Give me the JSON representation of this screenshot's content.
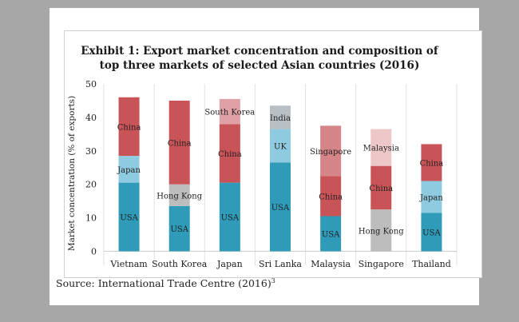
{
  "chart_data": {
    "type": "bar",
    "stacked": true,
    "title": "Exhibit 1: Export market concentration and composition of top three markets of selected Asian countries (2016)",
    "title_lines": [
      "Exhibit 1: Export market concentration and composition of",
      "top three markets of selected Asian countries (2016)"
    ],
    "xlabel": "",
    "ylabel": "Market concentration (% of exports)",
    "ylim": [
      0,
      50
    ],
    "yticks": [
      0,
      10,
      20,
      30,
      40,
      50
    ],
    "grid": false,
    "categories": [
      "Vietnam",
      "South Korea",
      "Japan",
      "Sri Lanka",
      "Malaysia",
      "Singapore",
      "Thailand"
    ],
    "bars": [
      {
        "category": "Vietnam",
        "segments": [
          {
            "label": "USA",
            "value": 20.5,
            "color": "#2f9bb8"
          },
          {
            "label": "Japan",
            "value": 8.0,
            "color": "#8fcbe0"
          },
          {
            "label": "China",
            "value": 17.5,
            "color": "#c95458"
          }
        ]
      },
      {
        "category": "South Korea",
        "segments": [
          {
            "label": "USA",
            "value": 13.5,
            "color": "#2f9bb8"
          },
          {
            "label": "Hong Kong",
            "value": 6.5,
            "color": "#bdbdbd"
          },
          {
            "label": "China",
            "value": 25.0,
            "color": "#c95458"
          }
        ]
      },
      {
        "category": "Japan",
        "segments": [
          {
            "label": "USA",
            "value": 20.5,
            "color": "#2f9bb8"
          },
          {
            "label": "China",
            "value": 17.5,
            "color": "#c95458"
          },
          {
            "label": "South Korea",
            "value": 7.5,
            "color": "#dfa1a5"
          }
        ]
      },
      {
        "category": "Sri Lanka",
        "segments": [
          {
            "label": "USA",
            "value": 26.5,
            "color": "#2f9bb8"
          },
          {
            "label": "UK",
            "value": 10.0,
            "color": "#8fcbe0"
          },
          {
            "label": "India",
            "value": 7.0,
            "color": "#b8c0c6"
          }
        ]
      },
      {
        "category": "Malaysia",
        "segments": [
          {
            "label": "USA",
            "value": 10.5,
            "color": "#2f9bb8"
          },
          {
            "label": "China",
            "value": 12.0,
            "color": "#c95458"
          },
          {
            "label": "Singapore",
            "value": 15.0,
            "color": "#d58488"
          }
        ]
      },
      {
        "category": "Singapore",
        "segments": [
          {
            "label": "Hong Kong",
            "value": 12.5,
            "color": "#bdbdbd"
          },
          {
            "label": "China",
            "value": 13.0,
            "color": "#c95458"
          },
          {
            "label": "Malaysia",
            "value": 11.0,
            "color": "#eec7c9"
          }
        ]
      },
      {
        "category": "Thailand",
        "segments": [
          {
            "label": "USA",
            "value": 11.5,
            "color": "#2f9bb8"
          },
          {
            "label": "Japan",
            "value": 9.5,
            "color": "#8fcbe0"
          },
          {
            "label": "China",
            "value": 11.0,
            "color": "#c95458"
          }
        ]
      }
    ]
  },
  "source": {
    "text": "Source: International Trade Centre (2016)",
    "superscript": "3"
  }
}
